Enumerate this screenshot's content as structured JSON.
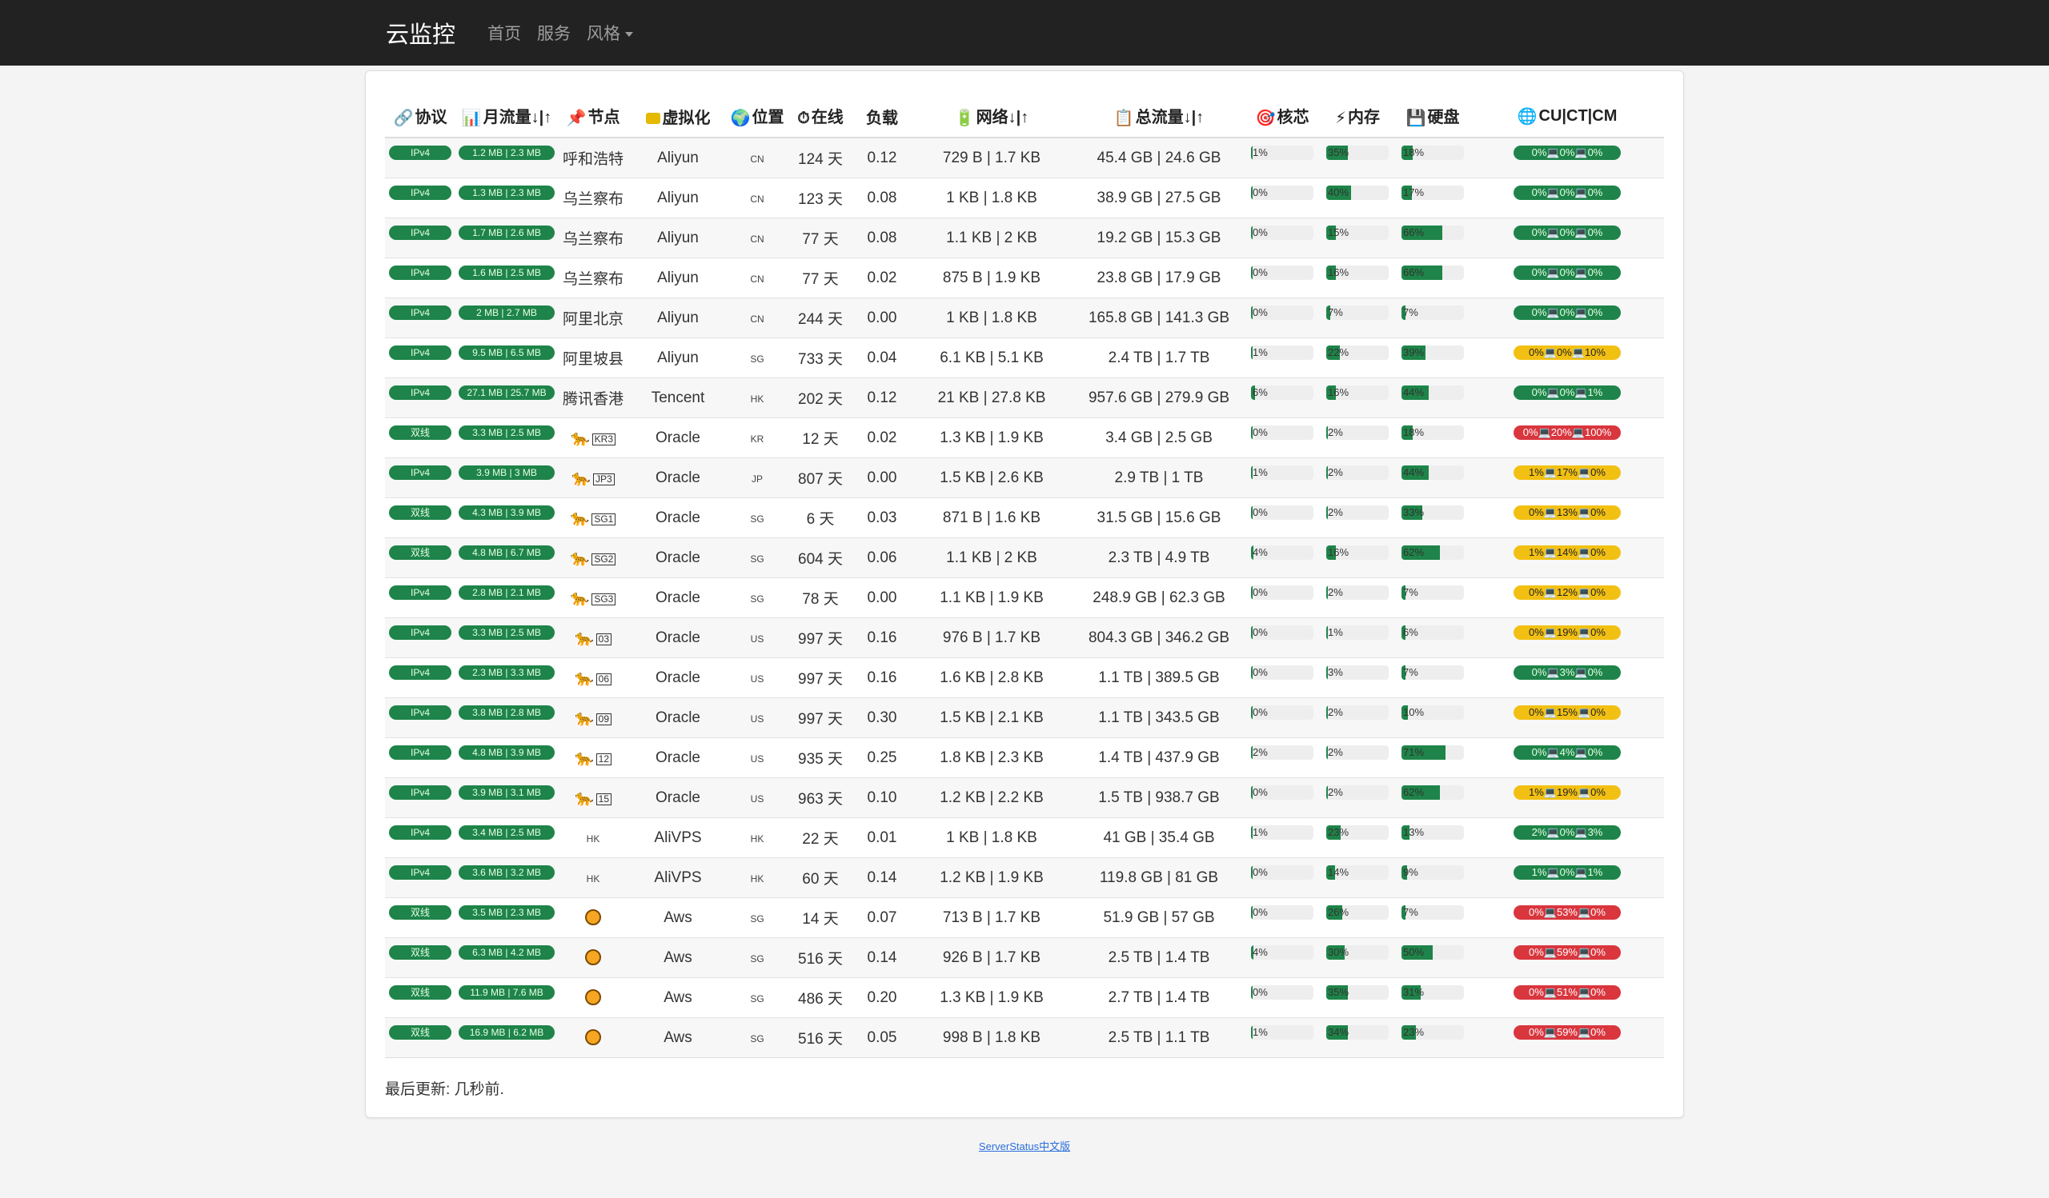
{
  "nav": {
    "brand": "云监控",
    "items": [
      "首页",
      "服务",
      "风格"
    ]
  },
  "headers": {
    "protocol": "协议",
    "monthly": "月流量↓|↑",
    "node": "节点",
    "virt": "虚拟化",
    "location": "位置",
    "uptime": "在线",
    "load": "负载",
    "network": "网络↓|↑",
    "total": "总流量↓|↑",
    "cpu": "核芯",
    "mem": "内存",
    "hdd": "硬盘",
    "cuctcm": "CU|CT|CM"
  },
  "rows": [
    {
      "proto": "IPv4",
      "monthly": "1.2 MB | 2.3 MB",
      "node": "呼和浩特",
      "virt": "Aliyun",
      "loc": "CN",
      "up": "124 天",
      "load": "0.12",
      "net": "729 B | 1.7 KB",
      "total": "45.4 GB | 24.6 GB",
      "cpu": 1,
      "mem": 35,
      "hdd": 18,
      "cu": "0%💻0%💻0%",
      "cuc": "green"
    },
    {
      "proto": "IPv4",
      "monthly": "1.3 MB | 2.3 MB",
      "node": "乌兰察布",
      "virt": "Aliyun",
      "loc": "CN",
      "up": "123 天",
      "load": "0.08",
      "net": "1 KB | 1.8 KB",
      "total": "38.9 GB | 27.5 GB",
      "cpu": 0,
      "mem": 40,
      "hdd": 17,
      "cu": "0%💻0%💻0%",
      "cuc": "green"
    },
    {
      "proto": "IPv4",
      "monthly": "1.7 MB | 2.6 MB",
      "node": "乌兰察布",
      "virt": "Aliyun",
      "loc": "CN",
      "up": "77 天",
      "load": "0.08",
      "net": "1.1 KB | 2 KB",
      "total": "19.2 GB | 15.3 GB",
      "cpu": 0,
      "mem": 15,
      "hdd": 66,
      "cu": "0%💻0%💻0%",
      "cuc": "green"
    },
    {
      "proto": "IPv4",
      "monthly": "1.6 MB | 2.5 MB",
      "node": "乌兰察布",
      "virt": "Aliyun",
      "loc": "CN",
      "up": "77 天",
      "load": "0.02",
      "net": "875 B | 1.9 KB",
      "total": "23.8 GB | 17.9 GB",
      "cpu": 0,
      "mem": 16,
      "hdd": 66,
      "cu": "0%💻0%💻0%",
      "cuc": "green"
    },
    {
      "proto": "IPv4",
      "monthly": "2 MB | 2.7 MB",
      "node": "阿里北京",
      "virt": "Aliyun",
      "loc": "CN",
      "up": "244 天",
      "load": "0.00",
      "net": "1 KB | 1.8 KB",
      "total": "165.8 GB | 141.3 GB",
      "cpu": 0,
      "mem": 7,
      "hdd": 7,
      "cu": "0%💻0%💻0%",
      "cuc": "green"
    },
    {
      "proto": "IPv4",
      "monthly": "9.5 MB | 6.5 MB",
      "node": "阿里坡县",
      "virt": "Aliyun",
      "loc": "SG",
      "up": "733 天",
      "load": "0.04",
      "net": "6.1 KB | 5.1 KB",
      "total": "2.4 TB | 1.7 TB",
      "cpu": 1,
      "mem": 22,
      "hdd": 39,
      "cu": "0%💻0%💻10%",
      "cuc": "yellow"
    },
    {
      "proto": "IPv4",
      "monthly": "27.1 MB | 25.7 MB",
      "node": "腾讯香港",
      "virt": "Tencent",
      "loc": "HK",
      "up": "202 天",
      "load": "0.12",
      "net": "21 KB | 27.8 KB",
      "total": "957.6 GB | 279.9 GB",
      "cpu": 6,
      "mem": 16,
      "hdd": 44,
      "cu": "0%💻0%💻1%",
      "cuc": "green"
    },
    {
      "proto": "双线",
      "monthly": "3.3 MB | 2.5 MB",
      "node": "KR3",
      "virt": "Oracle",
      "loc": "KR",
      "up": "12 天",
      "load": "0.02",
      "net": "1.3 KB | 1.9 KB",
      "total": "3.4 GB | 2.5 GB",
      "cpu": 0,
      "mem": 2,
      "hdd": 18,
      "cu": "0%💻20%💻100%",
      "cuc": "red"
    },
    {
      "proto": "IPv4",
      "monthly": "3.9 MB | 3 MB",
      "node": "JP3",
      "virt": "Oracle",
      "loc": "JP",
      "up": "807 天",
      "load": "0.00",
      "net": "1.5 KB | 2.6 KB",
      "total": "2.9 TB | 1 TB",
      "cpu": 1,
      "mem": 2,
      "hdd": 44,
      "cu": "1%💻17%💻0%",
      "cuc": "yellow"
    },
    {
      "proto": "双线",
      "monthly": "4.3 MB | 3.9 MB",
      "node": "SG1",
      "virt": "Oracle",
      "loc": "SG",
      "up": "6 天",
      "load": "0.03",
      "net": "871 B | 1.6 KB",
      "total": "31.5 GB | 15.6 GB",
      "cpu": 0,
      "mem": 2,
      "hdd": 33,
      "cu": "0%💻13%💻0%",
      "cuc": "yellow"
    },
    {
      "proto": "双线",
      "monthly": "4.8 MB | 6.7 MB",
      "node": "SG2",
      "virt": "Oracle",
      "loc": "SG",
      "up": "604 天",
      "load": "0.06",
      "net": "1.1 KB | 2 KB",
      "total": "2.3 TB | 4.9 TB",
      "cpu": 4,
      "mem": 16,
      "hdd": 62,
      "cu": "1%💻14%💻0%",
      "cuc": "yellow"
    },
    {
      "proto": "IPv4",
      "monthly": "2.8 MB | 2.1 MB",
      "node": "SG3",
      "virt": "Oracle",
      "loc": "SG",
      "up": "78 天",
      "load": "0.00",
      "net": "1.1 KB | 1.9 KB",
      "total": "248.9 GB | 62.3 GB",
      "cpu": 0,
      "mem": 2,
      "hdd": 7,
      "cu": "0%💻12%💻0%",
      "cuc": "yellow"
    },
    {
      "proto": "IPv4",
      "monthly": "3.3 MB | 2.5 MB",
      "node": "03",
      "virt": "Oracle",
      "loc": "US",
      "up": "997 天",
      "load": "0.16",
      "net": "976 B | 1.7 KB",
      "total": "804.3 GB | 346.2 GB",
      "cpu": 0,
      "mem": 1,
      "hdd": 6,
      "cu": "0%💻19%💻0%",
      "cuc": "yellow"
    },
    {
      "proto": "IPv4",
      "monthly": "2.3 MB | 3.3 MB",
      "node": "06",
      "virt": "Oracle",
      "loc": "US",
      "up": "997 天",
      "load": "0.16",
      "net": "1.6 KB | 2.8 KB",
      "total": "1.1 TB | 389.5 GB",
      "cpu": 0,
      "mem": 3,
      "hdd": 7,
      "cu": "0%💻3%💻0%",
      "cuc": "green"
    },
    {
      "proto": "IPv4",
      "monthly": "3.8 MB | 2.8 MB",
      "node": "09",
      "virt": "Oracle",
      "loc": "US",
      "up": "997 天",
      "load": "0.30",
      "net": "1.5 KB | 2.1 KB",
      "total": "1.1 TB | 343.5 GB",
      "cpu": 0,
      "mem": 2,
      "hdd": 10,
      "cu": "0%💻15%💻0%",
      "cuc": "yellow"
    },
    {
      "proto": "IPv4",
      "monthly": "4.8 MB | 3.9 MB",
      "node": "12",
      "virt": "Oracle",
      "loc": "US",
      "up": "935 天",
      "load": "0.25",
      "net": "1.8 KB | 2.3 KB",
      "total": "1.4 TB | 437.9 GB",
      "cpu": 2,
      "mem": 2,
      "hdd": 71,
      "cu": "0%💻4%💻0%",
      "cuc": "green"
    },
    {
      "proto": "IPv4",
      "monthly": "3.9 MB | 3.1 MB",
      "node": "15",
      "virt": "Oracle",
      "loc": "US",
      "up": "963 天",
      "load": "0.10",
      "net": "1.2 KB | 2.2 KB",
      "total": "1.5 TB | 938.7 GB",
      "cpu": 0,
      "mem": 2,
      "hdd": 62,
      "cu": "1%💻19%💻0%",
      "cuc": "yellow"
    },
    {
      "proto": "IPv4",
      "monthly": "3.4 MB | 2.5 MB",
      "node": "HK",
      "virt": "AliVPS",
      "loc": "HK",
      "up": "22 天",
      "load": "0.01",
      "net": "1 KB | 1.8 KB",
      "total": "41 GB | 35.4 GB",
      "cpu": 1,
      "mem": 23,
      "hdd": 13,
      "cu": "2%💻0%💻3%",
      "cuc": "green"
    },
    {
      "proto": "IPv4",
      "monthly": "3.6 MB | 3.2 MB",
      "node": "HK",
      "virt": "AliVPS",
      "loc": "HK",
      "up": "60 天",
      "load": "0.14",
      "net": "1.2 KB | 1.9 KB",
      "total": "119.8 GB | 81 GB",
      "cpu": 0,
      "mem": 14,
      "hdd": 9,
      "cu": "1%💻0%💻1%",
      "cuc": "green"
    },
    {
      "proto": "双线",
      "monthly": "3.5 MB | 2.3 MB",
      "node": "tiger",
      "virt": "Aws",
      "loc": "SG",
      "up": "14 天",
      "load": "0.07",
      "net": "713 B | 1.7 KB",
      "total": "51.9 GB | 57 GB",
      "cpu": 0,
      "mem": 26,
      "hdd": 7,
      "cu": "0%💻53%💻0%",
      "cuc": "red"
    },
    {
      "proto": "双线",
      "monthly": "6.3 MB | 4.2 MB",
      "node": "tiger",
      "virt": "Aws",
      "loc": "SG",
      "up": "516 天",
      "load": "0.14",
      "net": "926 B | 1.7 KB",
      "total": "2.5 TB | 1.4 TB",
      "cpu": 4,
      "mem": 30,
      "hdd": 50,
      "cu": "0%💻59%💻0%",
      "cuc": "red"
    },
    {
      "proto": "双线",
      "monthly": "11.9 MB | 7.6 MB",
      "node": "tiger",
      "virt": "Aws",
      "loc": "SG",
      "up": "486 天",
      "load": "0.20",
      "net": "1.3 KB | 1.9 KB",
      "total": "2.7 TB | 1.4 TB",
      "cpu": 0,
      "mem": 35,
      "hdd": 31,
      "cu": "0%💻51%💻0%",
      "cuc": "red"
    },
    {
      "proto": "双线",
      "monthly": "16.9 MB | 6.2 MB",
      "node": "tiger",
      "virt": "Aws",
      "loc": "SG",
      "up": "516 天",
      "load": "0.05",
      "net": "998 B | 1.8 KB",
      "total": "2.5 TB | 1.1 TB",
      "cpu": 1,
      "mem": 34,
      "hdd": 23,
      "cu": "0%💻59%💻0%",
      "cuc": "red"
    }
  ],
  "footer": {
    "updated": "最后更新: 几秒前.",
    "link": "ServerStatus中文版"
  },
  "colors": {
    "green": "#1e8449",
    "yellow": "#f2c012",
    "red": "#d9363e"
  }
}
